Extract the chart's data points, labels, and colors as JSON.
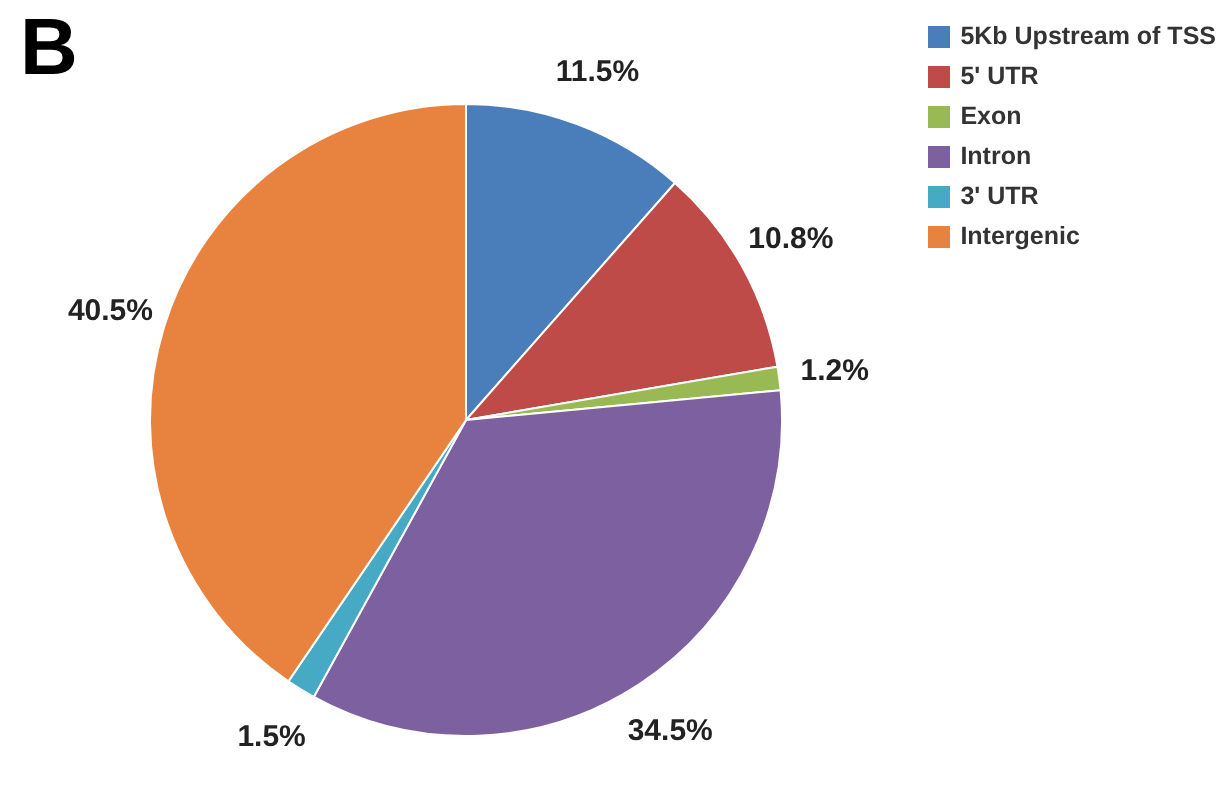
{
  "chart_data": {
    "type": "pie",
    "title": "B",
    "categories": [
      "5Kb Upstream of TSS",
      "5' UTR",
      "Exon",
      "Intron",
      "3' UTR",
      "Intergenic"
    ],
    "values": [
      11.5,
      10.8,
      1.2,
      34.5,
      1.5,
      40.5
    ],
    "colors": [
      "#4a7ebb",
      "#be4b48",
      "#98b954",
      "#7d60a0",
      "#46aac5",
      "#e8823f"
    ],
    "value_labels": [
      "11.5%",
      "10.8%",
      "1.2%",
      "34.5%",
      "1.5%",
      "40.5%"
    ],
    "legend": "top right"
  }
}
